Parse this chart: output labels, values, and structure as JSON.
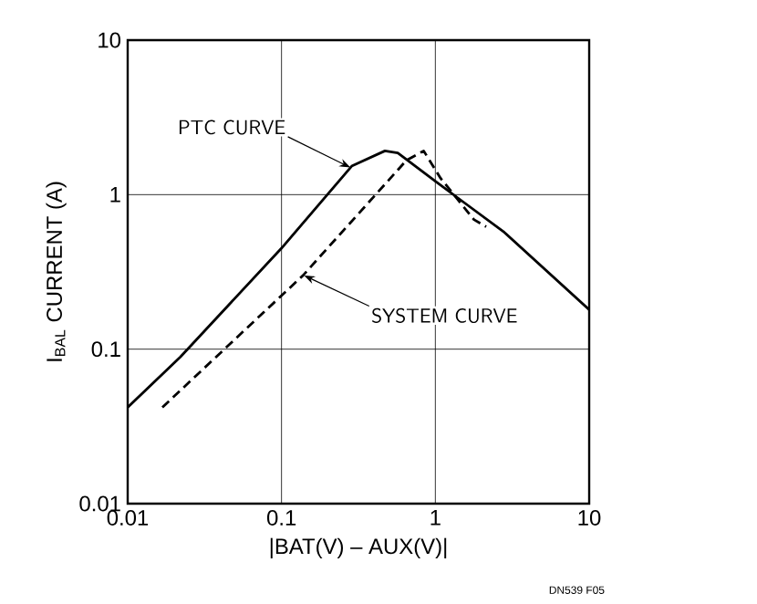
{
  "chart_data": {
    "type": "line",
    "xlabel": "|BAT(V) – AUX(V)|",
    "ylabel": "I$_{BAL}$ CURRENT (A)",
    "log": "xy",
    "grid": true,
    "xlim": [
      0.01,
      10
    ],
    "ylim": [
      0.01,
      10
    ],
    "xticks": [
      0.01,
      0.1,
      1,
      10
    ],
    "yticks": [
      0.01,
      0.1,
      1,
      10
    ],
    "series": [
      {
        "color": "#000000",
        "line_style": "solid",
        "x": [
          0.01,
          0.022,
          0.1,
          0.286,
          0.47,
          0.57,
          1,
          2.81,
          10
        ],
        "values": [
          0.042,
          0.089,
          0.45,
          1.53,
          1.92,
          1.86,
          1.22,
          0.57,
          0.18
        ]
      },
      {
        "color": "#000000",
        "line_style": "dashed",
        "x": [
          0.0168,
          0.138,
          0.65,
          0.84,
          1.08,
          1.78,
          2.14
        ],
        "values": [
          0.042,
          0.3,
          1.67,
          1.92,
          1.28,
          0.69,
          0.62
        ]
      }
    ],
    "annotations": [
      {
        "text": "PTC CURVE",
        "x": 0.28,
        "y": 1.5
      },
      {
        "text": "SYSTEM CURVE",
        "x": 0.14,
        "y": 0.3
      },
      "DN539 F05"
    ]
  }
}
